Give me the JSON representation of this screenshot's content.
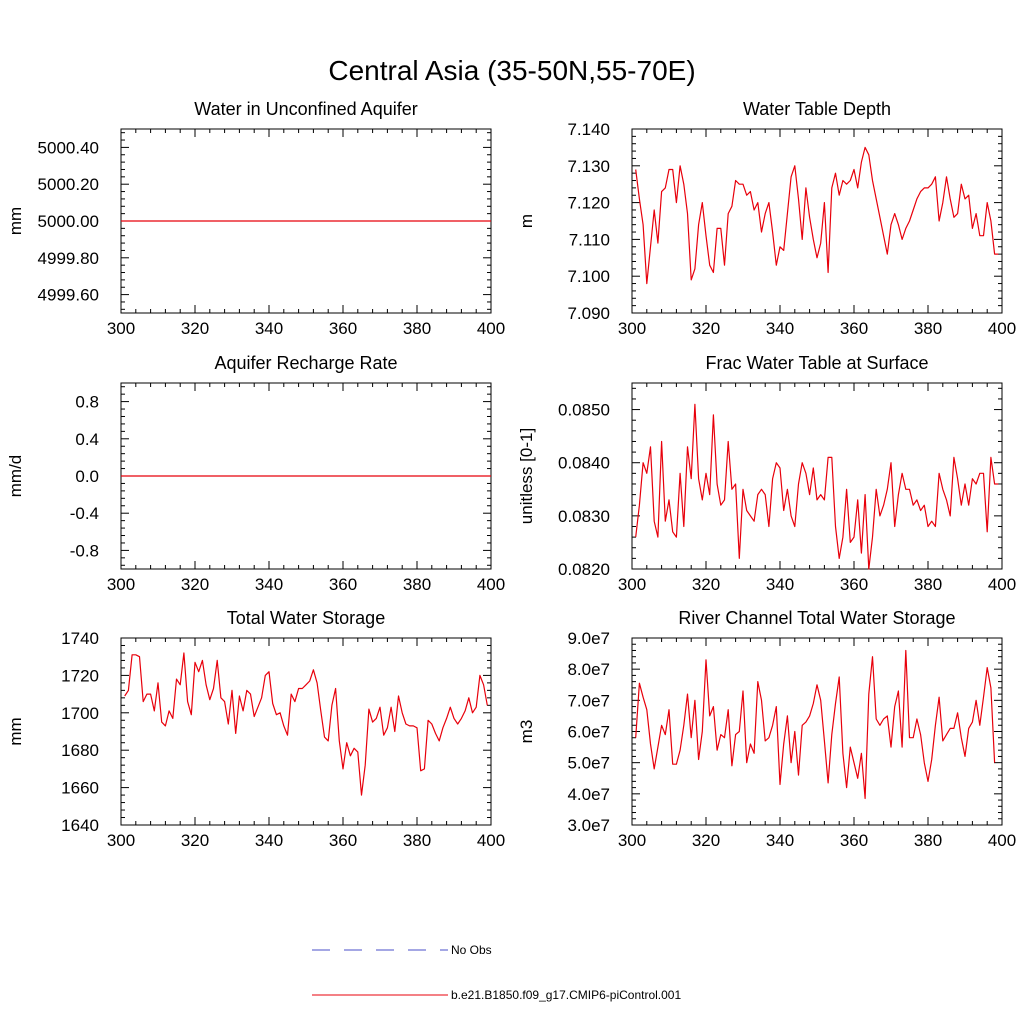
{
  "figure": {
    "title": "Central Asia (35-50N,55-70E)"
  },
  "legend": {
    "items": [
      {
        "label": "No Obs",
        "color": "#4a4fc9",
        "style": "dashed"
      },
      {
        "label": "b.e21.B1850.f09_g17.CMIP6-piControl.001",
        "color": "#e8000b",
        "style": "solid"
      }
    ]
  },
  "chart_data": [
    {
      "type": "line",
      "title": "Water in Unconfined Aquifer",
      "ylabel": "mm",
      "xlim": [
        300,
        400
      ],
      "ylim": [
        4999.5,
        5000.5
      ],
      "xticks": [
        300,
        320,
        340,
        360,
        380,
        400
      ],
      "xtick_labels": [
        "300",
        "320",
        "340",
        "360",
        "380",
        "400"
      ],
      "yticks": [
        4999.6,
        4999.8,
        5000.0,
        5000.2,
        5000.4
      ],
      "ytick_labels": [
        "4999.60",
        "4999.80",
        "5000.00",
        "5000.20",
        "5000.40"
      ],
      "series": [
        {
          "color": "#e8000b",
          "x": [
            300,
            400
          ],
          "y": [
            5000.0,
            5000.0
          ]
        }
      ]
    },
    {
      "type": "line",
      "title": "Water Table Depth",
      "ylabel": "m",
      "xlim": [
        300,
        400
      ],
      "ylim": [
        7.09,
        7.14
      ],
      "xticks": [
        300,
        320,
        340,
        360,
        380,
        400
      ],
      "xtick_labels": [
        "300",
        "320",
        "340",
        "360",
        "380",
        "400"
      ],
      "yticks": [
        7.09,
        7.1,
        7.11,
        7.12,
        7.13,
        7.14
      ],
      "ytick_labels": [
        "7.090",
        "7.100",
        "7.110",
        "7.120",
        "7.130",
        "7.140"
      ],
      "series": [
        {
          "color": "#e8000b",
          "x_start": 301,
          "x_step": 1,
          "y": [
            7.129,
            7.121,
            7.114,
            7.098,
            7.108,
            7.118,
            7.109,
            7.123,
            7.124,
            7.129,
            7.129,
            7.12,
            7.13,
            7.125,
            7.117,
            7.099,
            7.102,
            7.114,
            7.12,
            7.111,
            7.103,
            7.101,
            7.113,
            7.113,
            7.103,
            7.117,
            7.119,
            7.126,
            7.125,
            7.125,
            7.122,
            7.123,
            7.118,
            7.12,
            7.112,
            7.117,
            7.12,
            7.112,
            7.103,
            7.108,
            7.107,
            7.117,
            7.127,
            7.13,
            7.121,
            7.11,
            7.124,
            7.116,
            7.11,
            7.105,
            7.109,
            7.12,
            7.101,
            7.124,
            7.128,
            7.122,
            7.126,
            7.125,
            7.126,
            7.129,
            7.124,
            7.131,
            7.135,
            7.133,
            7.126,
            7.121,
            7.116,
            7.111,
            7.106,
            7.114,
            7.117,
            7.114,
            7.11,
            7.113,
            7.115,
            7.118,
            7.121,
            7.123,
            7.124,
            7.124,
            7.125,
            7.127,
            7.115,
            7.12,
            7.127,
            7.121,
            7.116,
            7.117,
            7.125,
            7.121,
            7.122,
            7.113,
            7.117,
            7.111,
            7.111,
            7.12,
            7.115,
            7.106,
            7.106
          ]
        }
      ]
    },
    {
      "type": "line",
      "title": "Aquifer Recharge Rate",
      "ylabel": "mm/d",
      "xlim": [
        300,
        400
      ],
      "ylim": [
        -1,
        1
      ],
      "xticks": [
        300,
        320,
        340,
        360,
        380,
        400
      ],
      "xtick_labels": [
        "300",
        "320",
        "340",
        "360",
        "380",
        "400"
      ],
      "yticks": [
        -0.8,
        -0.4,
        0.0,
        0.4,
        0.8
      ],
      "ytick_labels": [
        "-0.8",
        "-0.4",
        "0.0",
        "0.4",
        "0.8"
      ],
      "series": [
        {
          "color": "#e8000b",
          "x": [
            300,
            400
          ],
          "y": [
            0.0,
            0.0
          ]
        }
      ]
    },
    {
      "type": "line",
      "title": "Frac Water Table at Surface",
      "ylabel": "unitless [0-1]",
      "xlim": [
        300,
        400
      ],
      "ylim": [
        0.082,
        0.0855
      ],
      "xticks": [
        300,
        320,
        340,
        360,
        380,
        400
      ],
      "xtick_labels": [
        "300",
        "320",
        "340",
        "360",
        "380",
        "400"
      ],
      "yticks": [
        0.082,
        0.083,
        0.084,
        0.085
      ],
      "ytick_labels": [
        "0.0820",
        "0.0830",
        "0.0840",
        "0.0850"
      ],
      "series": [
        {
          "color": "#e8000b",
          "x_start": 301,
          "x_step": 1,
          "y": [
            0.0826,
            0.0832,
            0.084,
            0.0838,
            0.0843,
            0.0829,
            0.0826,
            0.0844,
            0.0829,
            0.0833,
            0.0827,
            0.0826,
            0.0838,
            0.0828,
            0.0843,
            0.0837,
            0.0851,
            0.0837,
            0.0833,
            0.0838,
            0.0834,
            0.0849,
            0.0836,
            0.0832,
            0.0833,
            0.0844,
            0.0835,
            0.0836,
            0.0822,
            0.0835,
            0.0831,
            0.083,
            0.0829,
            0.0834,
            0.0835,
            0.0834,
            0.0828,
            0.0837,
            0.084,
            0.0839,
            0.0831,
            0.0835,
            0.083,
            0.0828,
            0.0836,
            0.084,
            0.0838,
            0.0834,
            0.0839,
            0.0833,
            0.0834,
            0.0833,
            0.0841,
            0.0841,
            0.0828,
            0.0822,
            0.0826,
            0.0835,
            0.0825,
            0.0826,
            0.0833,
            0.0823,
            0.0834,
            0.082,
            0.0826,
            0.0835,
            0.083,
            0.0832,
            0.0835,
            0.084,
            0.0828,
            0.0834,
            0.0838,
            0.0835,
            0.0835,
            0.0832,
            0.0833,
            0.0831,
            0.0832,
            0.0828,
            0.0829,
            0.0828,
            0.0838,
            0.0835,
            0.0833,
            0.083,
            0.0841,
            0.0837,
            0.0832,
            0.0836,
            0.0832,
            0.0837,
            0.0836,
            0.0838,
            0.0838,
            0.0827,
            0.0841,
            0.0836,
            0.0836
          ]
        }
      ]
    },
    {
      "type": "line",
      "title": "Total Water Storage",
      "ylabel": "mm",
      "xlim": [
        300,
        400
      ],
      "ylim": [
        1640,
        1740
      ],
      "xticks": [
        300,
        320,
        340,
        360,
        380,
        400
      ],
      "xtick_labels": [
        "300",
        "320",
        "340",
        "360",
        "380",
        "400"
      ],
      "yticks": [
        1640,
        1660,
        1680,
        1700,
        1720,
        1740
      ],
      "ytick_labels": [
        "1640",
        "1660",
        "1680",
        "1700",
        "1720",
        "1740"
      ],
      "series": [
        {
          "color": "#e8000b",
          "x_start": 301,
          "x_step": 1,
          "y": [
            1709,
            1712,
            1731,
            1731,
            1730,
            1706,
            1710,
            1710,
            1701,
            1716,
            1695,
            1693,
            1701,
            1697,
            1718,
            1715,
            1732,
            1706,
            1699,
            1727,
            1722,
            1728,
            1715,
            1707,
            1713,
            1728,
            1708,
            1706,
            1694,
            1712,
            1689,
            1709,
            1701,
            1712,
            1710,
            1698,
            1703,
            1708,
            1720,
            1722,
            1705,
            1699,
            1700,
            1693,
            1688,
            1710,
            1706,
            1713,
            1713,
            1715,
            1717,
            1723,
            1716,
            1701,
            1687,
            1685,
            1704,
            1713,
            1685,
            1670,
            1684,
            1677,
            1681,
            1679,
            1656,
            1672,
            1702,
            1695,
            1697,
            1703,
            1688,
            1692,
            1703,
            1690,
            1709,
            1700,
            1694,
            1693,
            1693,
            1692,
            1669,
            1670,
            1696,
            1694,
            1689,
            1685,
            1692,
            1697,
            1703,
            1697,
            1694,
            1697,
            1701,
            1708,
            1700,
            1703,
            1720,
            1715,
            1704
          ]
        }
      ]
    },
    {
      "type": "line",
      "title": "River Channel Total Water Storage",
      "ylabel": "m3",
      "xlim": [
        300,
        400
      ],
      "ylim": [
        30000000,
        90000000
      ],
      "xticks": [
        300,
        320,
        340,
        360,
        380,
        400
      ],
      "xtick_labels": [
        "300",
        "320",
        "340",
        "360",
        "380",
        "400"
      ],
      "yticks": [
        30000000,
        40000000,
        50000000,
        60000000,
        70000000,
        80000000,
        90000000
      ],
      "ytick_labels": [
        "3.0e7",
        "4.0e7",
        "5.0e7",
        "6.0e7",
        "7.0e7",
        "8.0e7",
        "9.0e7"
      ],
      "series": [
        {
          "color": "#e8000b",
          "x_start": 301,
          "x_step": 1,
          "y": [
            58000000,
            75500000,
            71000000,
            67000000,
            56000000,
            48000000,
            55000000,
            62000000,
            59000000,
            67000000,
            49500000,
            49500000,
            54000000,
            62000000,
            72000000,
            58000000,
            70000000,
            51000000,
            60000000,
            83000000,
            65000000,
            68000000,
            54000000,
            59000000,
            58000000,
            67000000,
            49000000,
            59000000,
            60000000,
            73000000,
            50000000,
            56000000,
            53000000,
            76000000,
            70000000,
            57000000,
            58000000,
            62000000,
            68000000,
            43000000,
            56000000,
            65000000,
            50000000,
            60000000,
            46000000,
            62000000,
            63000000,
            65000000,
            69000000,
            75000000,
            70000000,
            57000000,
            43500000,
            59000000,
            69000000,
            77500000,
            53000000,
            42000000,
            55000000,
            50000000,
            45000000,
            53000000,
            38500000,
            72000000,
            84000000,
            64000000,
            62000000,
            64000000,
            65000000,
            55000000,
            68000000,
            73000000,
            55000000,
            86000000,
            58000000,
            58000000,
            64000000,
            59000000,
            50000000,
            44000000,
            51000000,
            62000000,
            71000000,
            57000000,
            59000000,
            61000000,
            61000000,
            66000000,
            58000000,
            52000000,
            61000000,
            63000000,
            70000000,
            62000000,
            71000000,
            80500000,
            74000000,
            50000000
          ]
        }
      ]
    }
  ]
}
